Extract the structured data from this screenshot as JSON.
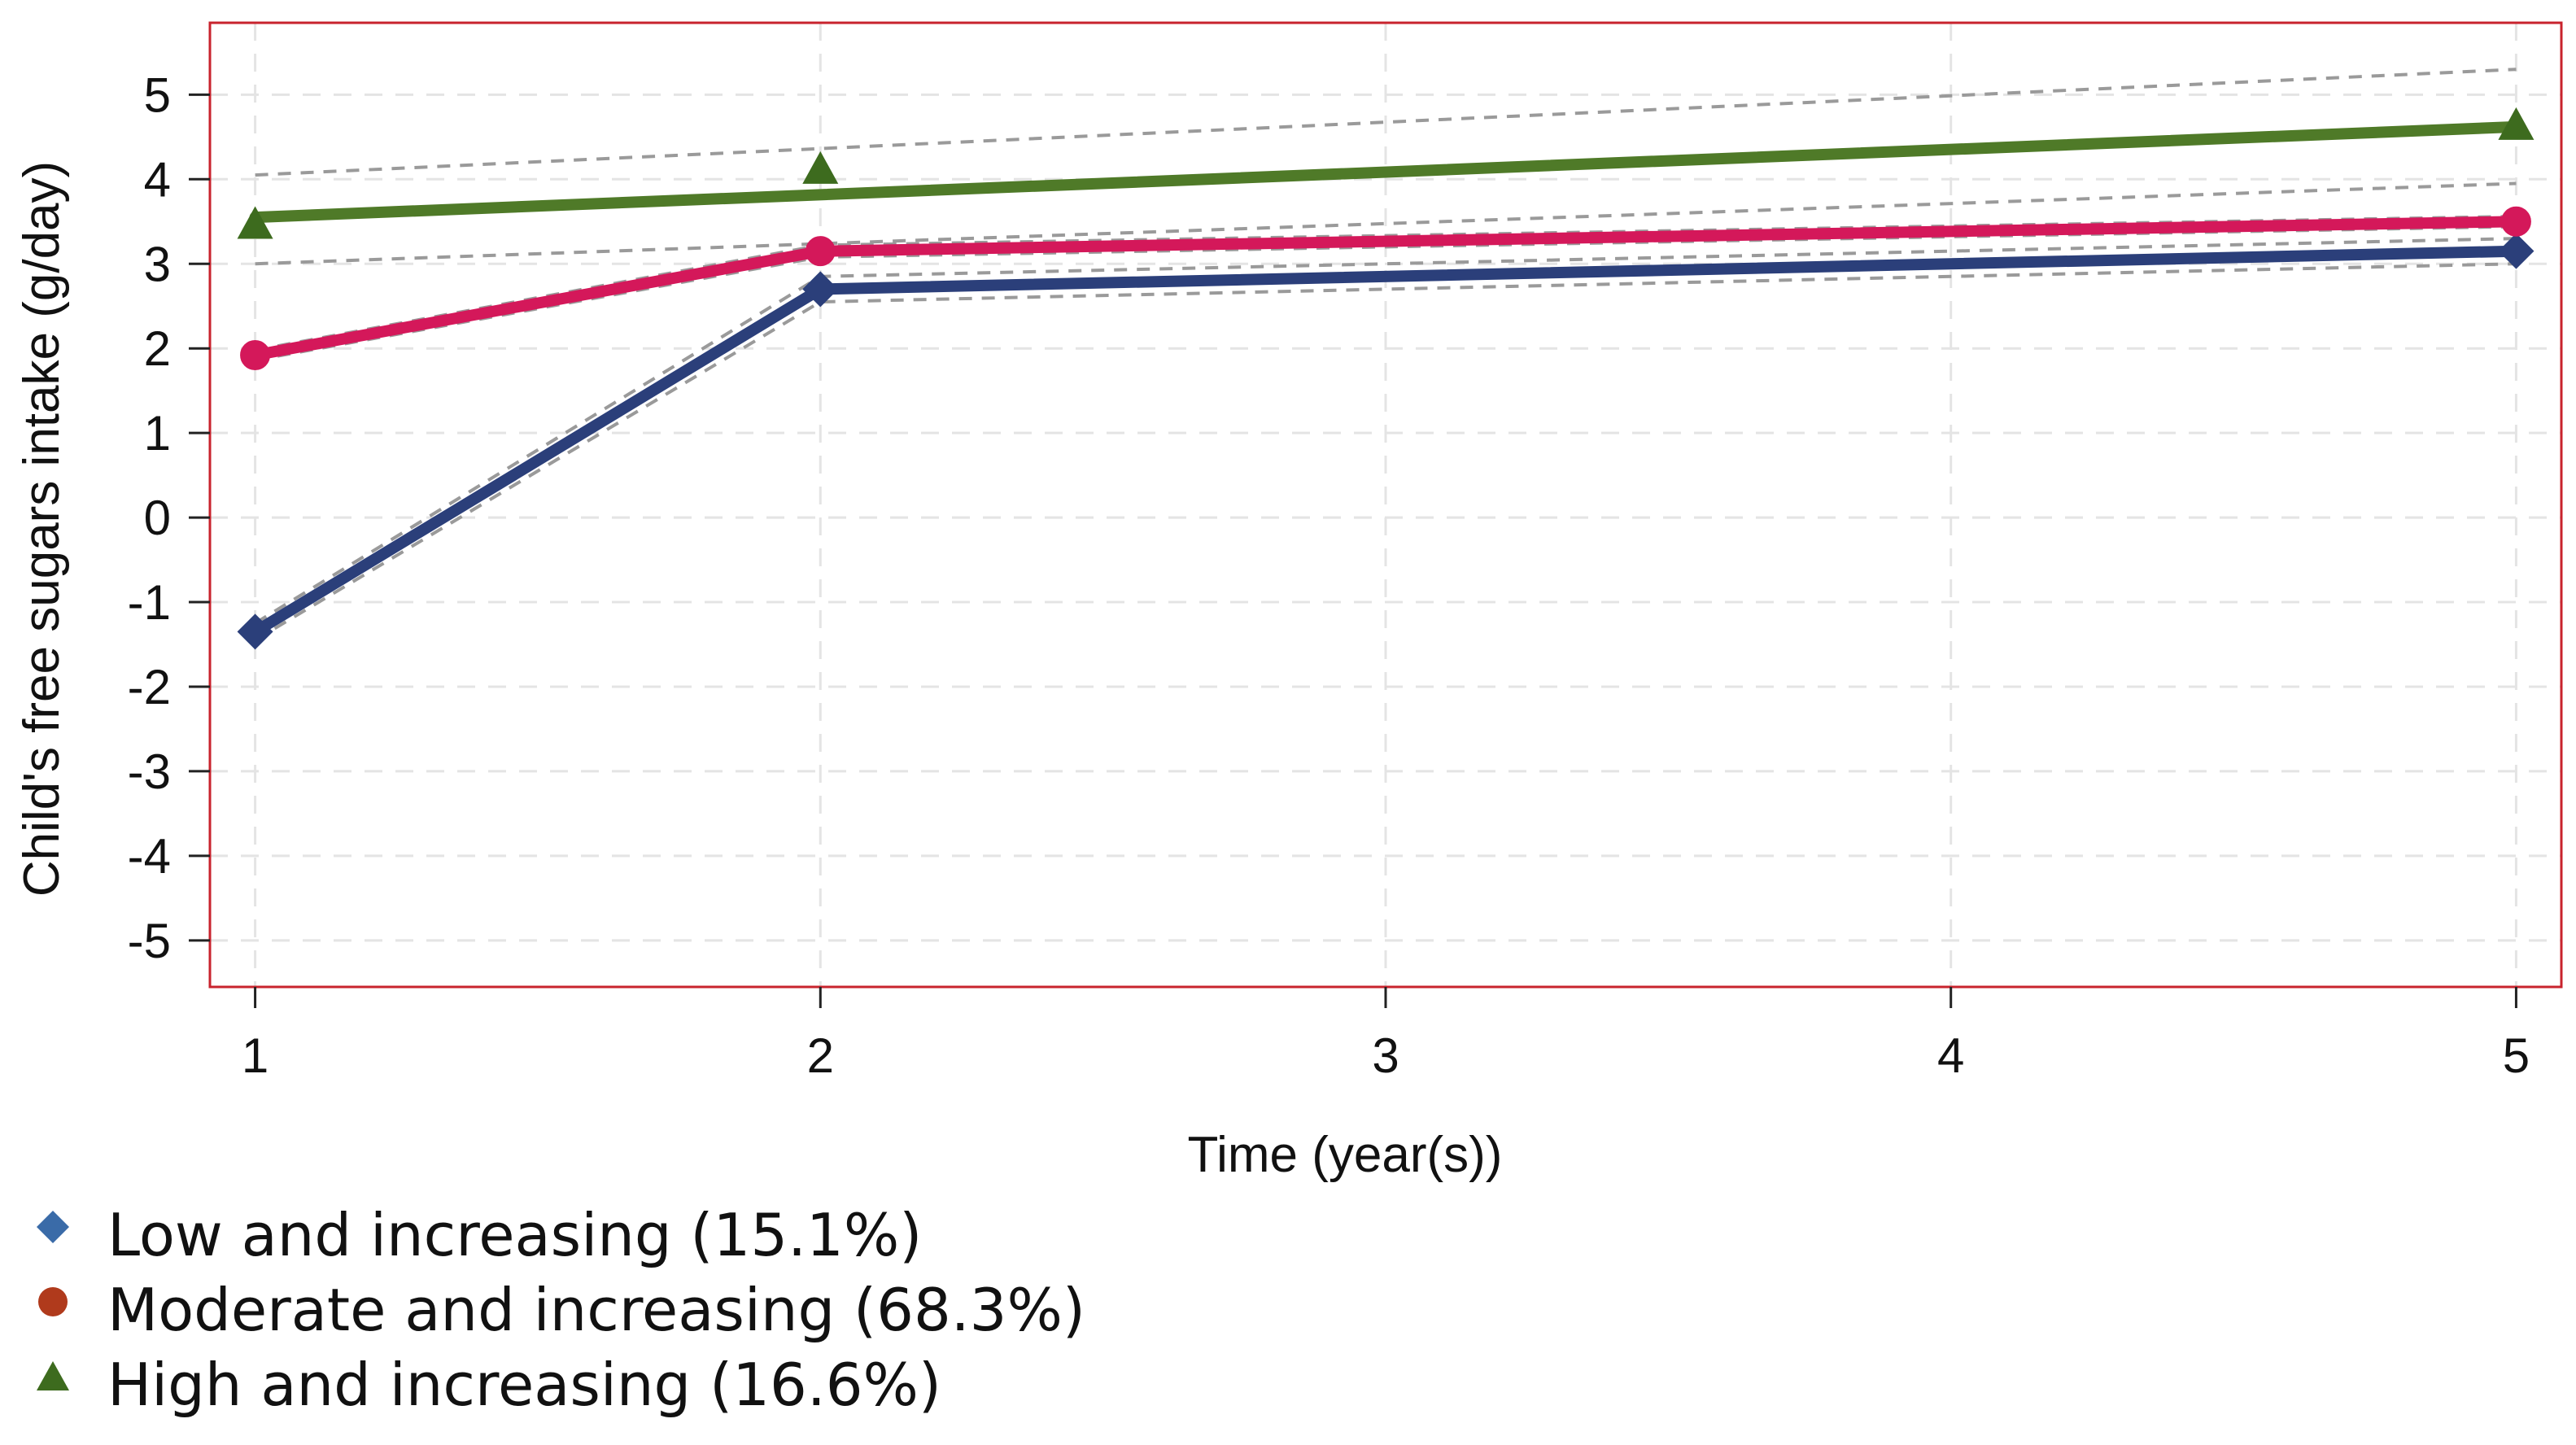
{
  "chart_data": {
    "type": "line",
    "title": "",
    "xlabel": "Time (year(s))",
    "ylabel": "Child's free sugars intake (g/day)",
    "x": [
      1,
      2,
      3,
      4,
      5
    ],
    "xlim": [
      0.92,
      5.08
    ],
    "ylim": [
      -5.55,
      5.85
    ],
    "xticks": [
      "1",
      "2",
      "3",
      "4",
      "5"
    ],
    "yticks": [
      "5",
      "4",
      "3",
      "2",
      "1",
      "0",
      "-1",
      "-2",
      "-3",
      "-4",
      "-5"
    ],
    "grid": true,
    "legend_position": "bottom-left",
    "series": [
      {
        "name": "Low and increasing (15.1%)",
        "color": "#2b3f7a",
        "marker": "diamond",
        "points": [
          [
            1,
            -1.35
          ],
          [
            2,
            2.7
          ],
          [
            5,
            3.15
          ]
        ],
        "ci_upper": [
          [
            1,
            -1.25
          ],
          [
            2,
            2.85
          ],
          [
            5,
            3.3
          ]
        ],
        "ci_lower": [
          [
            1,
            -1.45
          ],
          [
            2,
            2.55
          ],
          [
            5,
            3.0
          ]
        ]
      },
      {
        "name": "Moderate and increasing (68.3%)",
        "color": "#d4185a",
        "marker_color": "#b03a1c",
        "marker": "circle",
        "points": [
          [
            1,
            1.92
          ],
          [
            2,
            3.15
          ],
          [
            5,
            3.5
          ]
        ],
        "ci_upper": [
          [
            1,
            1.98
          ],
          [
            2,
            3.22
          ],
          [
            5,
            3.56
          ]
        ],
        "ci_lower": [
          [
            1,
            1.86
          ],
          [
            2,
            3.08
          ],
          [
            5,
            3.44
          ]
        ]
      },
      {
        "name": "High and increasing (16.6%)",
        "color": "#4f7a28",
        "marker_color": "#3d6b1e",
        "marker": "triangle",
        "points": [
          [
            1,
            3.55
          ],
          [
            5,
            4.62
          ]
        ],
        "observed": [
          [
            1,
            3.45
          ],
          [
            2,
            4.1
          ],
          [
            5,
            4.62
          ]
        ],
        "ci_upper": [
          [
            1,
            4.05
          ],
          [
            5,
            5.3
          ]
        ],
        "ci_lower": [
          [
            1,
            3.0
          ],
          [
            5,
            3.95
          ]
        ]
      }
    ]
  }
}
